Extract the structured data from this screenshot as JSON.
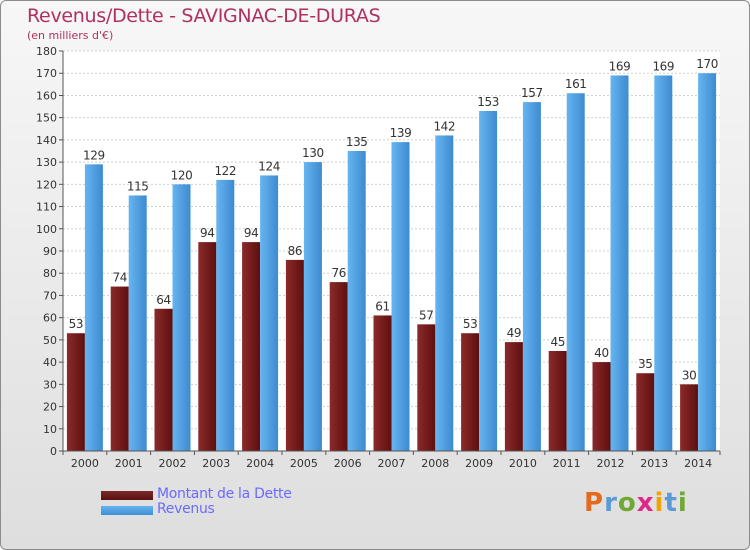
{
  "chart_data": {
    "type": "bar",
    "title": "Revenus/Dette - SAVIGNAC-DE-DURAS",
    "subtitle": "(en milliers d'€)",
    "categories": [
      "2000",
      "2001",
      "2002",
      "2003",
      "2004",
      "2005",
      "2006",
      "2007",
      "2008",
      "2009",
      "2010",
      "2011",
      "2012",
      "2013",
      "2014"
    ],
    "series": [
      {
        "name": "Montant de la Dette",
        "values": [
          53,
          74,
          64,
          94,
          94,
          86,
          76,
          61,
          57,
          53,
          49,
          45,
          40,
          35,
          30
        ],
        "color": "#7a1c1c"
      },
      {
        "name": "Revenus",
        "values": [
          129,
          115,
          120,
          122,
          124,
          130,
          135,
          139,
          142,
          153,
          157,
          161,
          169,
          169,
          170
        ],
        "color": "#4d9fe0"
      }
    ],
    "ylim": [
      0,
      180
    ],
    "yticks": [
      0,
      10,
      20,
      30,
      40,
      50,
      60,
      70,
      80,
      90,
      100,
      110,
      120,
      130,
      140,
      150,
      160,
      170,
      180
    ],
    "grid": true,
    "legend_position": "bottom-left",
    "xlabel": "",
    "ylabel": ""
  },
  "logo": {
    "text": "Proxiti",
    "letter_colors": [
      "#e46a1e",
      "#5b9bd5",
      "#6fa832",
      "#e0288a",
      "#f0a400",
      "#5b9bd5",
      "#6fa832"
    ]
  }
}
